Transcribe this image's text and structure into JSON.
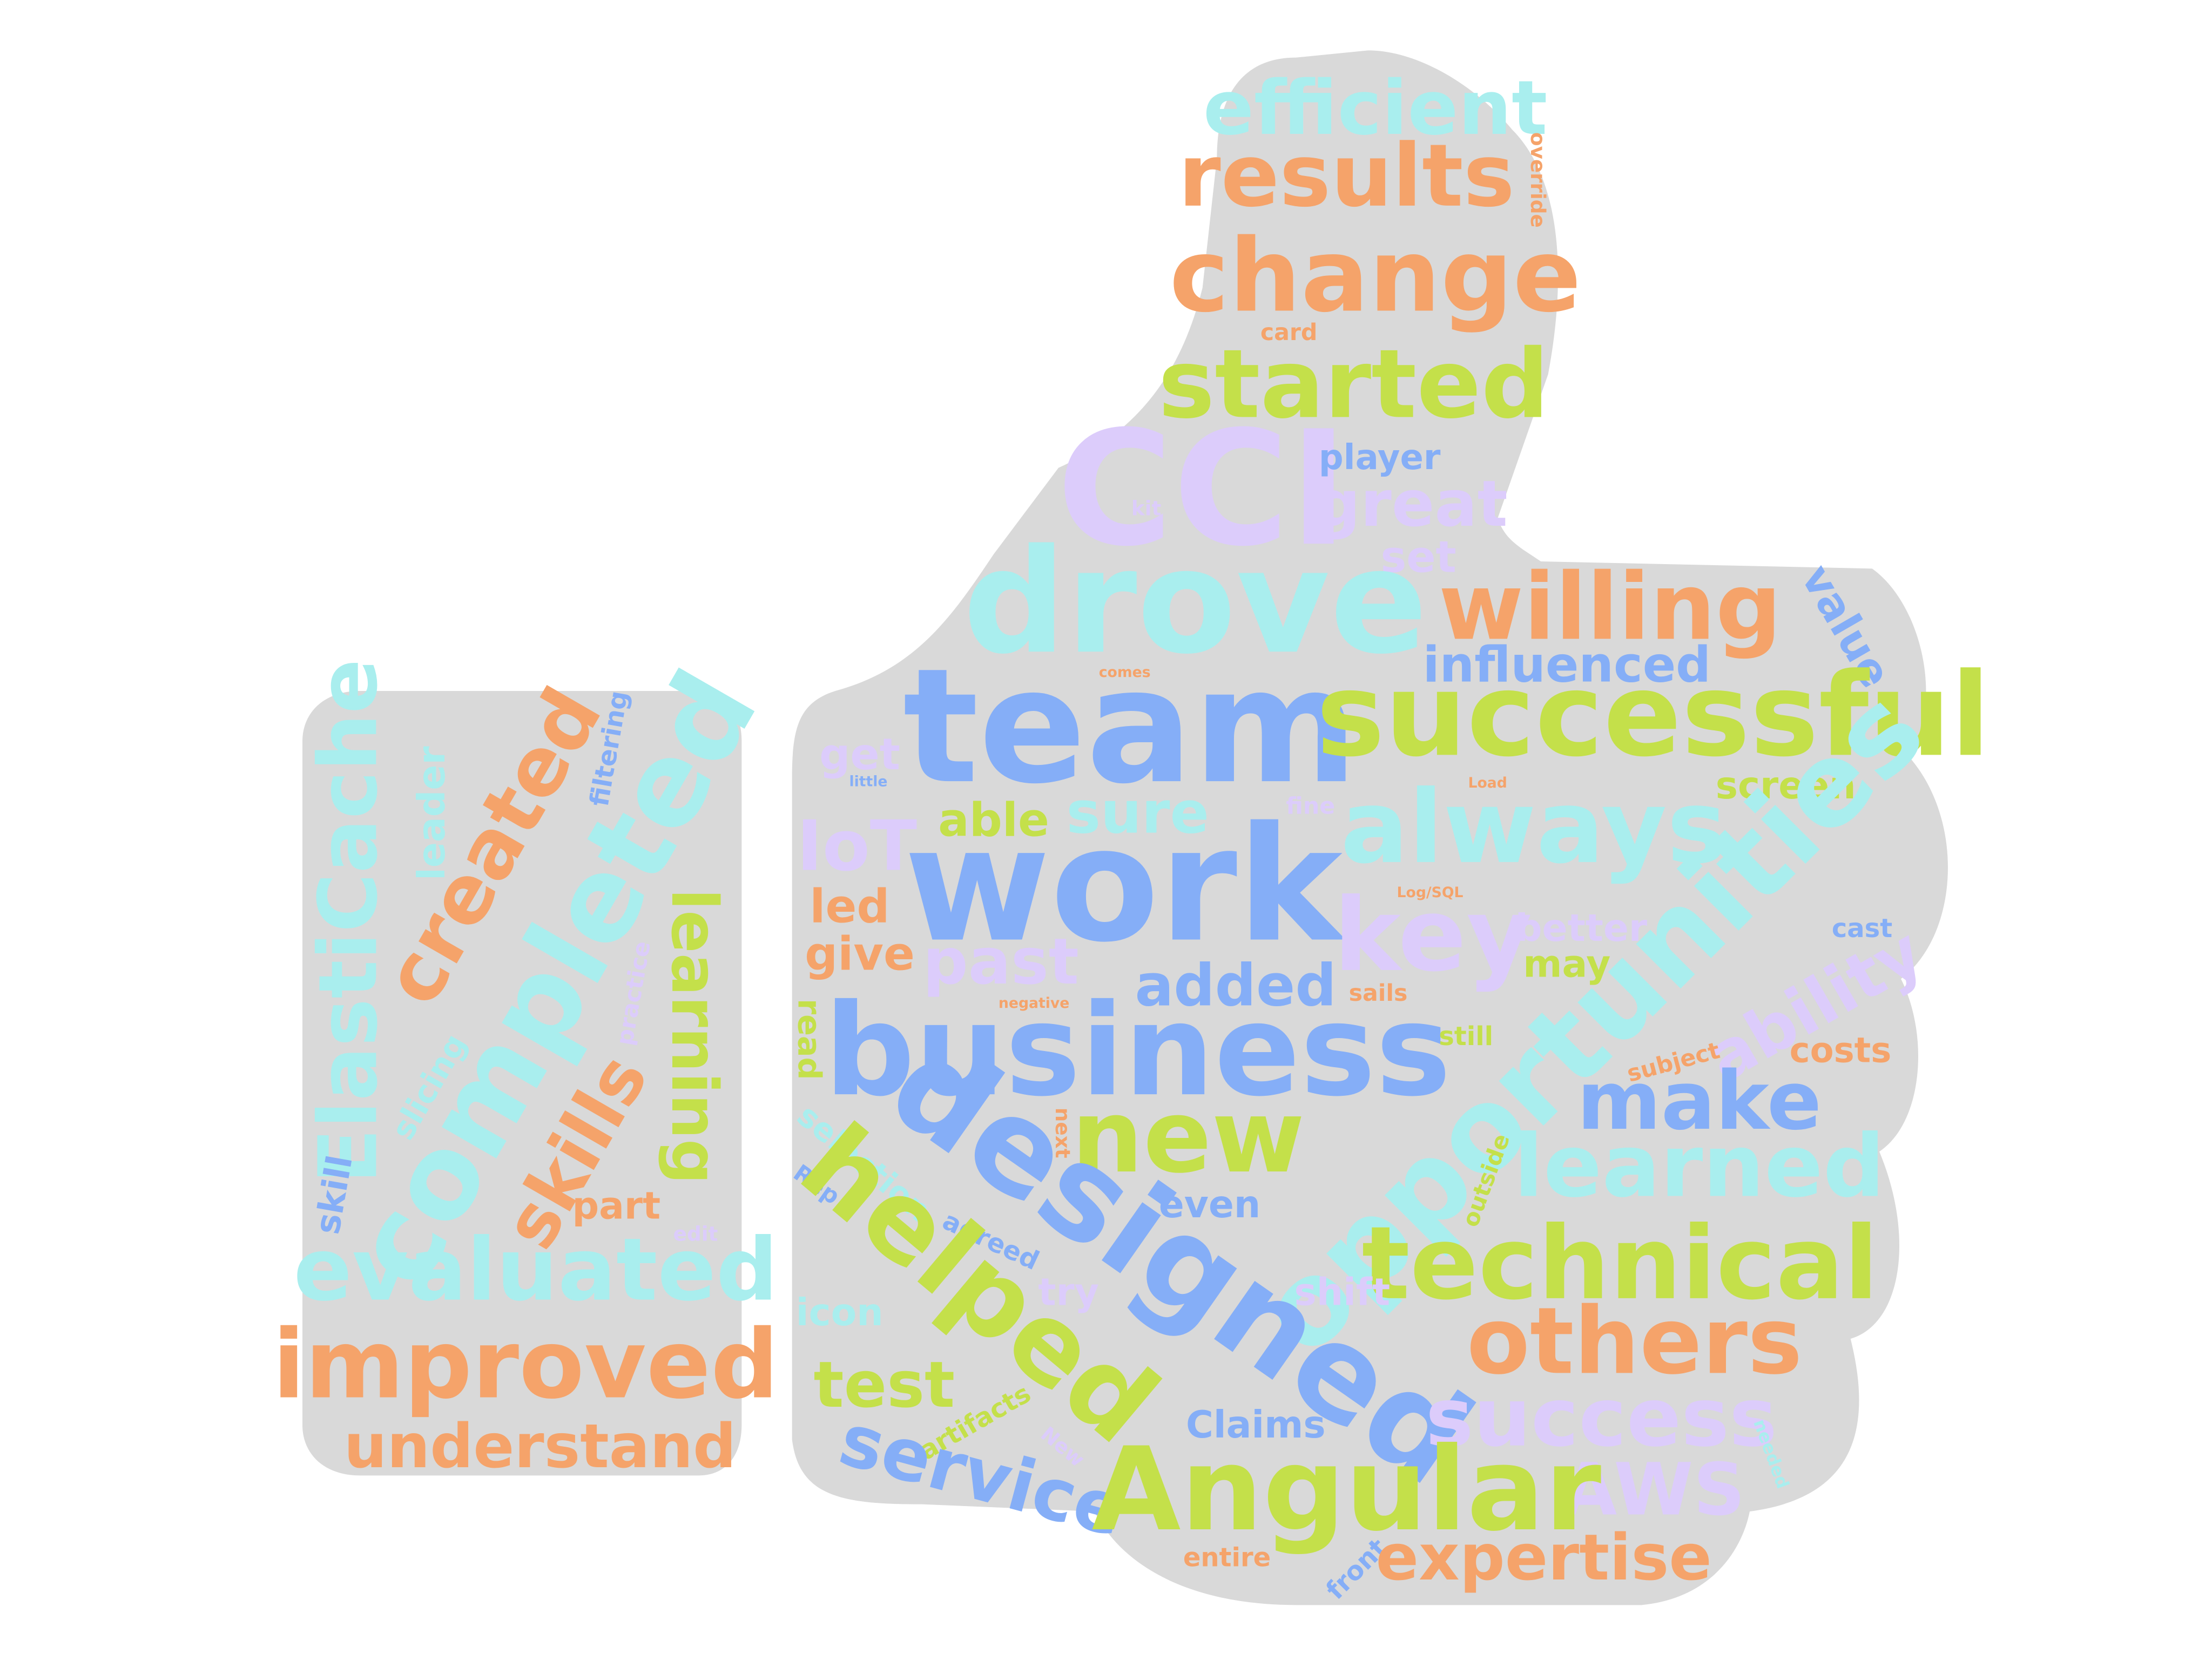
{
  "palette": {
    "background": "#ffffff",
    "shape_fill": "#d9d9d9",
    "orange": "#f5a36a",
    "green": "#c4e04a",
    "cyan": "#a9eeee",
    "blue": "#85aef7",
    "lavender": "#dcccfb"
  },
  "shapes": [
    {
      "name": "thumbs-up-hand"
    },
    {
      "name": "thumbs-up-cuff"
    }
  ],
  "words": [
    {
      "text": "efficient",
      "color": "cyan",
      "size": 52,
      "rotate": 0
    },
    {
      "text": "override",
      "color": "orange",
      "size": 14,
      "rotate": 90
    },
    {
      "text": "results",
      "color": "orange",
      "size": 60,
      "rotate": 0
    },
    {
      "text": "change",
      "color": "orange",
      "size": 70,
      "rotate": 0
    },
    {
      "text": "card",
      "color": "orange",
      "size": 16,
      "rotate": 0
    },
    {
      "text": "started",
      "color": "green",
      "size": 66,
      "rotate": 0
    },
    {
      "text": "CCI",
      "color": "lavender",
      "size": 110,
      "rotate": 0
    },
    {
      "text": "player",
      "color": "blue",
      "size": 24,
      "rotate": 0
    },
    {
      "text": "great",
      "color": "lavender",
      "size": 44,
      "rotate": 0
    },
    {
      "text": "kit",
      "color": "lavender",
      "size": 14,
      "rotate": 0
    },
    {
      "text": "set",
      "color": "lavender",
      "size": 30,
      "rotate": 0
    },
    {
      "text": "drove",
      "color": "cyan",
      "size": 100,
      "rotate": 0
    },
    {
      "text": "willing",
      "color": "orange",
      "size": 64,
      "rotate": 0
    },
    {
      "text": "value",
      "color": "blue",
      "size": 30,
      "rotate": 60
    },
    {
      "text": "influenced",
      "color": "blue",
      "size": 34,
      "rotate": 0
    },
    {
      "text": "team",
      "color": "blue",
      "size": 110,
      "rotate": 0
    },
    {
      "text": "successful",
      "color": "green",
      "size": 80,
      "rotate": 0
    },
    {
      "text": "comes",
      "color": "orange",
      "size": 10,
      "rotate": 0
    },
    {
      "text": "get",
      "color": "lavender",
      "size": 30,
      "rotate": 0
    },
    {
      "text": "little",
      "color": "blue",
      "size": 10,
      "rotate": 0
    },
    {
      "text": "sure",
      "color": "cyan",
      "size": 40,
      "rotate": 0
    },
    {
      "text": "always",
      "color": "cyan",
      "size": 70,
      "rotate": 0
    },
    {
      "text": "fine",
      "color": "lavender",
      "size": 16,
      "rotate": 0
    },
    {
      "text": "Load",
      "color": "orange",
      "size": 10,
      "rotate": 0
    },
    {
      "text": "screen",
      "color": "green",
      "size": 26,
      "rotate": 0
    },
    {
      "text": "IoT",
      "color": "lavender",
      "size": 48,
      "rotate": 0
    },
    {
      "text": "able",
      "color": "green",
      "size": 32,
      "rotate": 0
    },
    {
      "text": "work",
      "color": "blue",
      "size": 110,
      "rotate": 0
    },
    {
      "text": "key",
      "color": "lavender",
      "size": 70,
      "rotate": 0
    },
    {
      "text": "Log/SQL",
      "color": "orange",
      "size": 10,
      "rotate": 0
    },
    {
      "text": "opportunities",
      "color": "cyan",
      "size": 80,
      "rotate": -45
    },
    {
      "text": "led",
      "color": "orange",
      "size": 32,
      "rotate": 0
    },
    {
      "text": "give",
      "color": "orange",
      "size": 32,
      "rotate": 0
    },
    {
      "text": "past",
      "color": "lavender",
      "size": 44,
      "rotate": 0
    },
    {
      "text": "better",
      "color": "lavender",
      "size": 26,
      "rotate": 0
    },
    {
      "text": "cast",
      "color": "blue",
      "size": 18,
      "rotate": 0
    },
    {
      "text": "may",
      "color": "green",
      "size": 26,
      "rotate": 0
    },
    {
      "text": "ability",
      "color": "lavender",
      "size": 46,
      "rotate": -30
    },
    {
      "text": "added",
      "color": "blue",
      "size": 40,
      "rotate": 0
    },
    {
      "text": "negative",
      "color": "orange",
      "size": 10,
      "rotate": 0
    },
    {
      "text": "sails",
      "color": "orange",
      "size": 16,
      "rotate": 0
    },
    {
      "text": "read",
      "color": "green",
      "size": 22,
      "rotate": 90
    },
    {
      "text": "business",
      "color": "blue",
      "size": 88,
      "rotate": 0
    },
    {
      "text": "still",
      "color": "green",
      "size": 18,
      "rotate": 0
    },
    {
      "text": "costs",
      "color": "orange",
      "size": 24,
      "rotate": 0
    },
    {
      "text": "subject",
      "color": "orange",
      "size": 16,
      "rotate": -15
    },
    {
      "text": "make",
      "color": "blue",
      "size": 56,
      "rotate": 0
    },
    {
      "text": "new",
      "color": "green",
      "size": 70,
      "rotate": 0
    },
    {
      "text": "next",
      "color": "orange",
      "size": 14,
      "rotate": 90
    },
    {
      "text": "selection",
      "color": "cyan",
      "size": 22,
      "rotate": 40
    },
    {
      "text": "designed",
      "color": "blue",
      "size": 90,
      "rotate": 35
    },
    {
      "text": "learned",
      "color": "cyan",
      "size": 60,
      "rotate": 0
    },
    {
      "text": "outside",
      "color": "green",
      "size": 16,
      "rotate": -70
    },
    {
      "text": "Rep",
      "color": "blue",
      "size": 16,
      "rotate": 35
    },
    {
      "text": "even",
      "color": "blue",
      "size": 26,
      "rotate": 0
    },
    {
      "text": "agreed",
      "color": "blue",
      "size": 18,
      "rotate": 25
    },
    {
      "text": "technical",
      "color": "green",
      "size": 70,
      "rotate": 0
    },
    {
      "text": "helped",
      "color": "green",
      "size": 76,
      "rotate": 40
    },
    {
      "text": "try",
      "color": "lavender",
      "size": 26,
      "rotate": 0
    },
    {
      "text": "shift",
      "color": "lavender",
      "size": 26,
      "rotate": 0
    },
    {
      "text": "icon",
      "color": "cyan",
      "size": 26,
      "rotate": 0
    },
    {
      "text": "others",
      "color": "orange",
      "size": 64,
      "rotate": 0
    },
    {
      "text": "test",
      "color": "green",
      "size": 44,
      "rotate": 0
    },
    {
      "text": "artifacts",
      "color": "green",
      "size": 18,
      "rotate": -30
    },
    {
      "text": "success",
      "color": "lavender",
      "size": 56,
      "rotate": 0
    },
    {
      "text": "Claims",
      "color": "blue",
      "size": 26,
      "rotate": 0
    },
    {
      "text": "New",
      "color": "lavender",
      "size": 14,
      "rotate": 40
    },
    {
      "text": "needed",
      "color": "cyan",
      "size": 12,
      "rotate": 70
    },
    {
      "text": "AWS",
      "color": "lavender",
      "size": 50,
      "rotate": 0
    },
    {
      "text": "service",
      "color": "blue",
      "size": 50,
      "rotate": 15
    },
    {
      "text": "Angular",
      "color": "green",
      "size": 80,
      "rotate": 0
    },
    {
      "text": "entire",
      "color": "orange",
      "size": 18,
      "rotate": 0
    },
    {
      "text": "front",
      "color": "blue",
      "size": 18,
      "rotate": -45
    },
    {
      "text": "expertise",
      "color": "orange",
      "size": 44,
      "rotate": 0
    },
    {
      "text": "ElastiCache",
      "color": "cyan",
      "size": 56,
      "rotate": -90
    },
    {
      "text": "leader",
      "color": "cyan",
      "size": 26,
      "rotate": -90
    },
    {
      "text": "created",
      "color": "orange",
      "size": 56,
      "rotate": -60
    },
    {
      "text": "completed",
      "color": "cyan",
      "size": 80,
      "rotate": -60
    },
    {
      "text": "filtering",
      "color": "blue",
      "size": 18,
      "rotate": -80
    },
    {
      "text": "learning",
      "color": "green",
      "size": 44,
      "rotate": 90
    },
    {
      "text": "practice",
      "color": "lavender",
      "size": 16,
      "rotate": -80
    },
    {
      "text": "slicing",
      "color": "cyan",
      "size": 22,
      "rotate": -60
    },
    {
      "text": "skills",
      "color": "orange",
      "size": 50,
      "rotate": -60
    },
    {
      "text": "skill",
      "color": "blue",
      "size": 24,
      "rotate": -80
    },
    {
      "text": "part",
      "color": "orange",
      "size": 26,
      "rotate": 0
    },
    {
      "text": "edit",
      "color": "lavender",
      "size": 14,
      "rotate": 0
    },
    {
      "text": "evaluated",
      "color": "cyan",
      "size": 60,
      "rotate": 0
    },
    {
      "text": "improved",
      "color": "orange",
      "size": 66,
      "rotate": 0
    },
    {
      "text": "understand",
      "color": "orange",
      "size": 42,
      "rotate": 0
    }
  ]
}
